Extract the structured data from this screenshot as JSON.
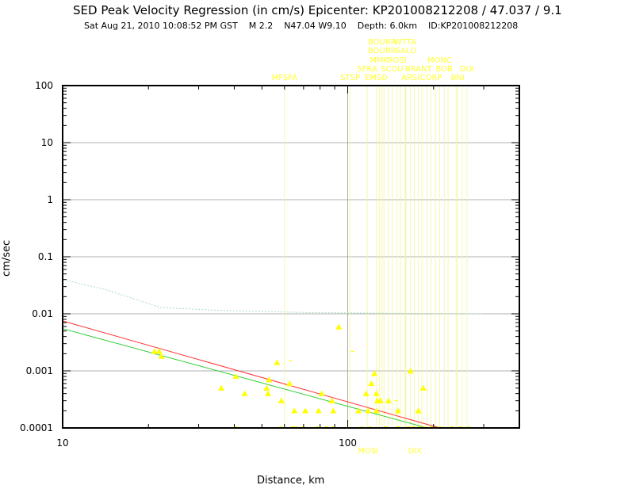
{
  "chart_data": {
    "type": "scatter",
    "title": "SED Peak Velocity Regression (in cm/s) Epicenter: KP201008212208 / 47.037 / 9.1",
    "subtitle": "Sat Aug 21, 2010 10:08:52 PM GST    M 2.2    N47.04 W9.10    Depth: 6.0km    ID:KP201008212208",
    "xlabel": "Distance, km",
    "ylabel": "cm/sec",
    "xscale": "log",
    "yscale": "log",
    "xlim": [
      10,
      400
    ],
    "ylim": [
      0.0001,
      100
    ],
    "grid": true,
    "x_tick_labels": [
      {
        "value": 10,
        "label": "10"
      },
      {
        "value": 100,
        "label": "100"
      }
    ],
    "y_tick_labels": [
      {
        "value": 100,
        "label": "100"
      },
      {
        "value": 10,
        "label": "10"
      },
      {
        "value": 1,
        "label": "1"
      },
      {
        "value": 0.1,
        "label": "0.1"
      },
      {
        "value": 0.01,
        "label": "0.01"
      },
      {
        "value": 0.001,
        "label": "0.001"
      },
      {
        "value": 0.0001,
        "label": "0.0001"
      }
    ],
    "colors": {
      "points": "#ffff00",
      "station_labels": "#ffff33",
      "station_lines": "#f5f59a",
      "red_line": "#ff3333",
      "green_line": "#33cc33",
      "dotted_curve": "#aaddbb",
      "grid": "#999999"
    },
    "points": [
      [
        21.0,
        0.0022
      ],
      [
        21.8,
        0.0022
      ],
      [
        22.2,
        0.0018
      ],
      [
        36.0,
        0.0005
      ],
      [
        40.5,
        0.0008
      ],
      [
        43.5,
        0.0004
      ],
      [
        52.0,
        0.0005
      ],
      [
        52.5,
        0.0004
      ],
      [
        53.0,
        0.0007
      ],
      [
        56.5,
        0.0014
      ],
      [
        58.5,
        0.0003
      ],
      [
        62.5,
        0.0006
      ],
      [
        65.0,
        0.0002
      ],
      [
        71.0,
        0.0002
      ],
      [
        79.0,
        0.0002
      ],
      [
        81.0,
        0.0004
      ],
      [
        88.0,
        0.0003
      ],
      [
        89.0,
        0.0002
      ],
      [
        93.0,
        0.0059
      ],
      [
        109.0,
        0.0002
      ],
      [
        116.0,
        0.0004
      ],
      [
        118.0,
        0.0002
      ],
      [
        121.0,
        0.0006
      ],
      [
        124.0,
        0.0009
      ],
      [
        126.0,
        0.0004
      ],
      [
        127.0,
        0.0003
      ],
      [
        126.0,
        0.0002
      ],
      [
        130.0,
        0.0003
      ],
      [
        139.0,
        0.0003
      ],
      [
        150.0,
        0.0002
      ],
      [
        166.0,
        0.001
      ],
      [
        177.0,
        0.0002
      ],
      [
        184.0,
        0.0005
      ]
    ],
    "faint_points": [
      [
        63.0,
        0.0015
      ],
      [
        104.0,
        0.0022
      ],
      [
        148.0,
        0.0003
      ]
    ],
    "baseline_points_x": [
      40.5,
      58.5,
      64,
      66,
      70,
      78,
      84,
      89,
      112,
      120,
      136,
      150,
      163,
      170,
      178,
      186,
      196,
      210,
      232,
      250,
      265
    ],
    "regression_lines": [
      {
        "color": "red",
        "x": [
          10,
          210
        ],
        "y": [
          0.0075,
          0.0001
        ]
      },
      {
        "color": "green",
        "x": [
          10,
          190
        ],
        "y": [
          0.0055,
          0.0001
        ]
      }
    ],
    "upper_curve": {
      "x": [
        10,
        14,
        18,
        22,
        25,
        35,
        50,
        75,
        100,
        150,
        200,
        300
      ],
      "y": [
        0.04,
        0.027,
        0.018,
        0.013,
        0.0125,
        0.0115,
        0.011,
        0.0105,
        0.0104,
        0.0102,
        0.0101,
        0.01
      ]
    },
    "stations": [
      {
        "name": "MFSFA",
        "x": 60,
        "row": 5
      },
      {
        "name": "STSP",
        "x": 102,
        "row": 5
      },
      {
        "name": "SFRA",
        "x": 117,
        "row": 4
      },
      {
        "name": "EMSD",
        "x": 126,
        "row": 5
      },
      {
        "name": "MMK",
        "x": 129,
        "row": 3
      },
      {
        "name": "BOURR",
        "x": 132,
        "row": 1
      },
      {
        "name": "BOURR",
        "x": 132,
        "row": 2
      },
      {
        "name": "SCOU",
        "x": 143,
        "row": 4
      },
      {
        "name": "ROSI",
        "x": 149,
        "row": 3
      },
      {
        "name": "WTTA",
        "x": 159,
        "row": 1
      },
      {
        "name": "SALO",
        "x": 160,
        "row": 2
      },
      {
        "name": "ARSI",
        "x": 166,
        "row": 5
      },
      {
        "name": "BRANT",
        "x": 177,
        "row": 4
      },
      {
        "name": "CORP",
        "x": 196,
        "row": 5
      },
      {
        "name": "MONC",
        "x": 210,
        "row": 3
      },
      {
        "name": "BOB",
        "x": 218,
        "row": 4
      },
      {
        "name": "BNI",
        "x": 243,
        "row": 5
      },
      {
        "name": "DOI",
        "x": 262,
        "row": 4
      }
    ],
    "bottom_stations": [
      {
        "name": "MOSI",
        "x": 118
      },
      {
        "name": "DIX",
        "x": 172
      }
    ],
    "extra_station_lines_x": [
      134,
      139,
      153,
      171,
      182,
      190,
      203,
      225,
      240,
      252
    ]
  }
}
